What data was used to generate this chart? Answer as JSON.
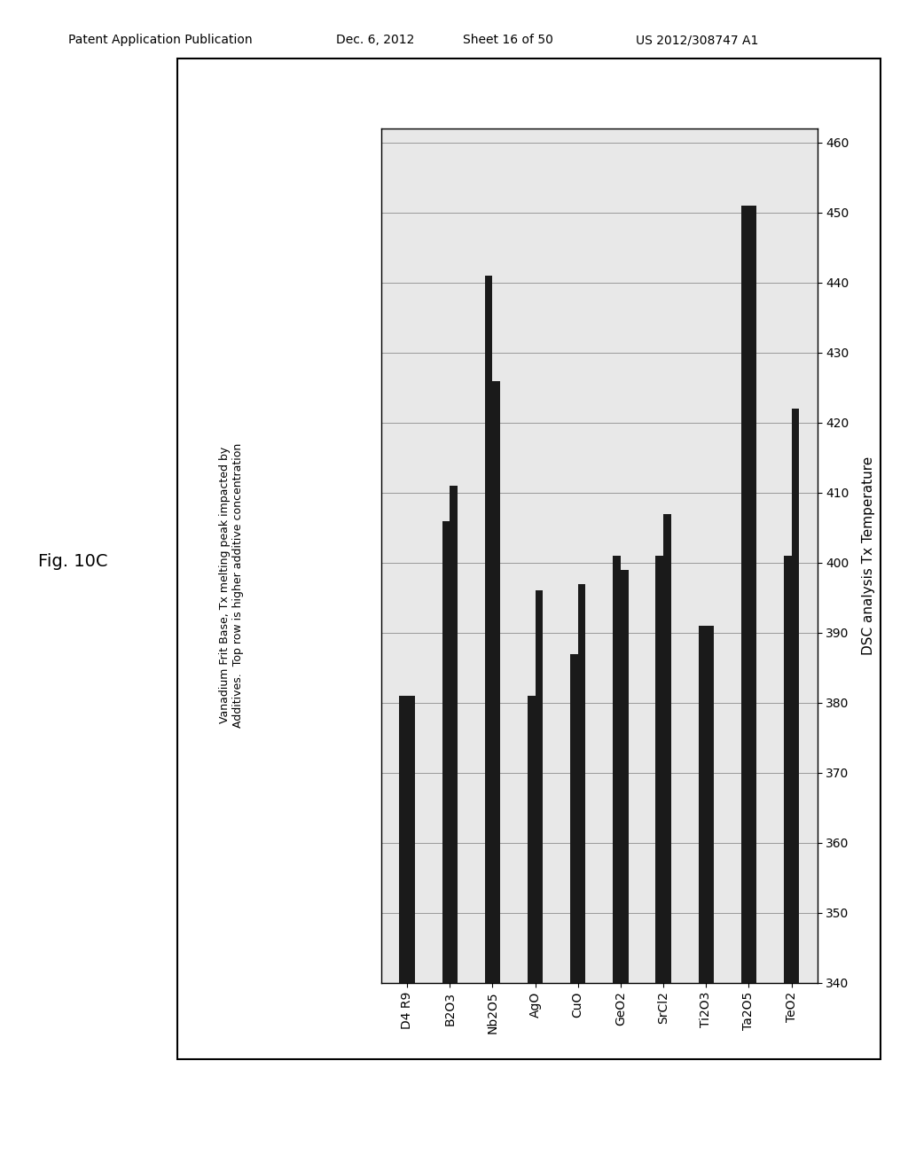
{
  "categories": [
    "D4 R9",
    "B2O3",
    "Nb2O5",
    "AgO",
    "CuO",
    "GeO2",
    "SrCl2",
    "Ti2O3",
    "Ta2O5",
    "TeO2"
  ],
  "bar1_values": [
    381,
    406,
    441,
    381,
    387,
    401,
    401,
    391,
    451,
    401
  ],
  "bar2_values": [
    381,
    411,
    426,
    396,
    397,
    399,
    407,
    391,
    451,
    422
  ],
  "bar_color": "#1a1a1a",
  "bar_width": 0.18,
  "ylim_min": 340,
  "ylim_max": 462,
  "yticks": [
    340,
    350,
    360,
    370,
    380,
    390,
    400,
    410,
    420,
    430,
    440,
    450,
    460
  ],
  "ylabel": "DSC analysis Tx Temperature",
  "title_line1": "Vanadium Frit Base, Tx melting peak impacted by",
  "title_line2": "Additives.  Top row is higher additive concentration",
  "fig_label": "Fig. 10C",
  "header_left": "Patent Application Publication",
  "header_mid1": "Dec. 6, 2012",
  "header_mid2": "Sheet 16 of 50",
  "header_right": "US 2012/308747 A1",
  "background_color": "#ffffff",
  "plot_bg_color": "#e8e8e8",
  "grid_color": "#999999"
}
